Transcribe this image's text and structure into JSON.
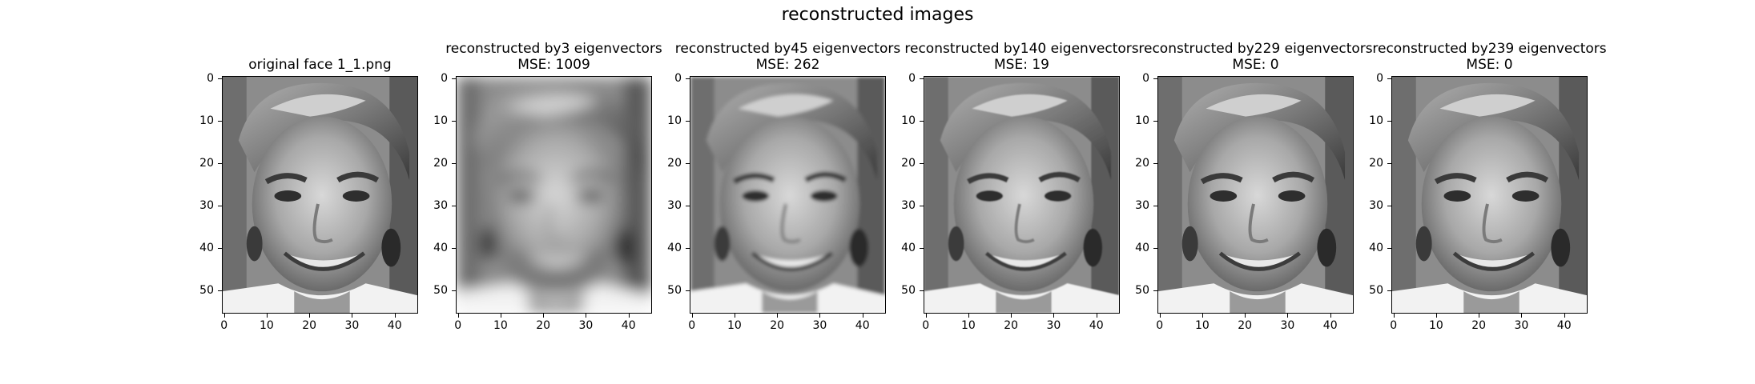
{
  "figure": {
    "suptitle": "reconstructed images",
    "y_ticks": [
      "0",
      "10",
      "20",
      "30",
      "40",
      "50"
    ],
    "x_ticks": [
      "0",
      "10",
      "20",
      "30",
      "40"
    ],
    "panels": [
      {
        "title_line1": "original face 1_1.png",
        "title_line2": "",
        "blur": 0
      },
      {
        "title_line1": "reconstructed by3 eigenvectors",
        "title_line2": "MSE: 1009",
        "blur": 9
      },
      {
        "title_line1": "reconstructed by45 eigenvectors",
        "title_line2": "MSE: 262",
        "blur": 2.2
      },
      {
        "title_line1": "reconstructed by140 eigenvectors",
        "title_line2": "MSE: 19",
        "blur": 0.7
      },
      {
        "title_line1": "reconstructed by229 eigenvectors",
        "title_line2": "MSE: 0",
        "blur": 0
      },
      {
        "title_line1": "reconstructed by239 eigenvectors",
        "title_line2": "MSE: 0",
        "blur": 0
      }
    ]
  }
}
